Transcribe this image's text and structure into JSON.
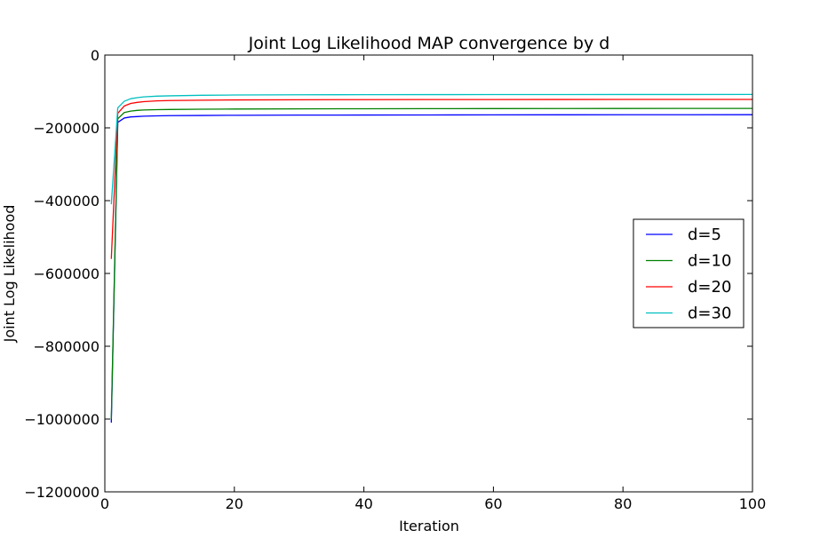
{
  "chart_data": {
    "type": "line",
    "title": "Joint Log Likelihood MAP convergence by d",
    "xlabel": "Iteration",
    "ylabel": "Joint Log Likelihood",
    "xlim": [
      0,
      100
    ],
    "ylim": [
      -1200000,
      0
    ],
    "xticks": [
      0,
      20,
      40,
      60,
      80,
      100
    ],
    "xtick_labels": [
      "0",
      "20",
      "40",
      "60",
      "80",
      "100"
    ],
    "yticks": [
      0,
      -200000,
      -400000,
      -600000,
      -800000,
      -1000000,
      -1200000
    ],
    "ytick_labels": [
      "0",
      "−200000",
      "−400000",
      "−600000",
      "−800000",
      "−1000000",
      "−1200000"
    ],
    "grid": false,
    "legend_position": "center-right",
    "x": [
      1,
      2,
      3,
      4,
      5,
      6,
      8,
      10,
      15,
      20,
      30,
      40,
      50,
      60,
      70,
      80,
      90,
      100
    ],
    "series": [
      {
        "name": "d=5",
        "color": "#0000ff",
        "values": [
          -1010000,
          -185000,
          -173000,
          -170000,
          -169000,
          -168000,
          -167000,
          -166500,
          -166000,
          -165500,
          -165000,
          -164800,
          -164600,
          -164400,
          -164200,
          -164100,
          -164000,
          -163900
        ]
      },
      {
        "name": "d=10",
        "color": "#008000",
        "values": [
          -1000000,
          -175000,
          -158000,
          -154000,
          -152000,
          -151000,
          -150000,
          -149500,
          -148800,
          -148300,
          -147800,
          -147500,
          -147300,
          -147100,
          -146900,
          -146800,
          -146700,
          -146600
        ]
      },
      {
        "name": "d=20",
        "color": "#ff0000",
        "values": [
          -560000,
          -160000,
          -140000,
          -133000,
          -130000,
          -128000,
          -126000,
          -125000,
          -124000,
          -123300,
          -122800,
          -122500,
          -122300,
          -122200,
          -122100,
          -122000,
          -121950,
          -121900
        ]
      },
      {
        "name": "d=30",
        "color": "#00bfbf",
        "values": [
          -410000,
          -145000,
          -127000,
          -120000,
          -117000,
          -115000,
          -113000,
          -112000,
          -110500,
          -109800,
          -109200,
          -108900,
          -108700,
          -108600,
          -108500,
          -108400,
          -108350,
          -108300
        ]
      }
    ]
  }
}
